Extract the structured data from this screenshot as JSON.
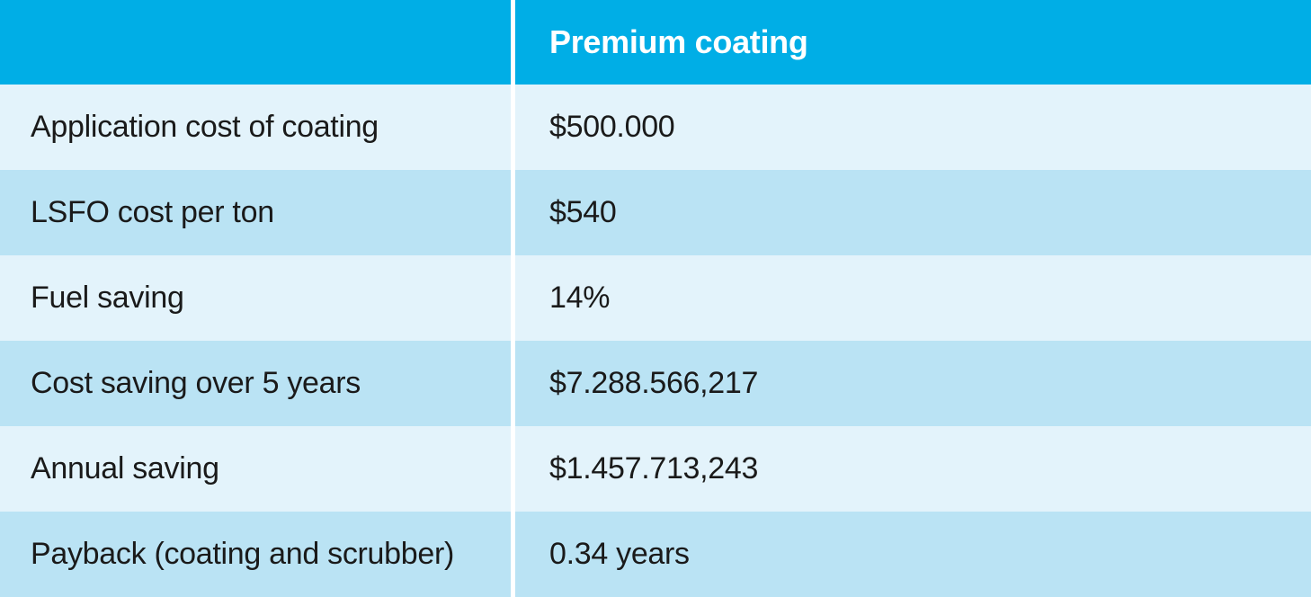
{
  "table": {
    "type": "table",
    "header_bg_color": "#00aee6",
    "header_text_color": "#ffffff",
    "row_light_bg": "#e3f3fb",
    "row_dark_bg": "#bae3f4",
    "text_color": "#1a1a1a",
    "divider_color": "#ffffff",
    "divider_width": 5,
    "font_size_body": 34,
    "font_size_header": 36,
    "header": {
      "left": "",
      "right": "Premium coating"
    },
    "rows": [
      {
        "label": "Application cost of coating",
        "value": "$500.000"
      },
      {
        "label": "LSFO cost per ton",
        "value": "$540"
      },
      {
        "label": "Fuel saving",
        "value": "14%"
      },
      {
        "label": "Cost saving over 5 years",
        "value": "$7.288.566,217"
      },
      {
        "label": "Annual saving",
        "value": "$1.457.713,243"
      },
      {
        "label": "Payback (coating and scrubber)",
        "value": "0.34 years"
      }
    ]
  }
}
